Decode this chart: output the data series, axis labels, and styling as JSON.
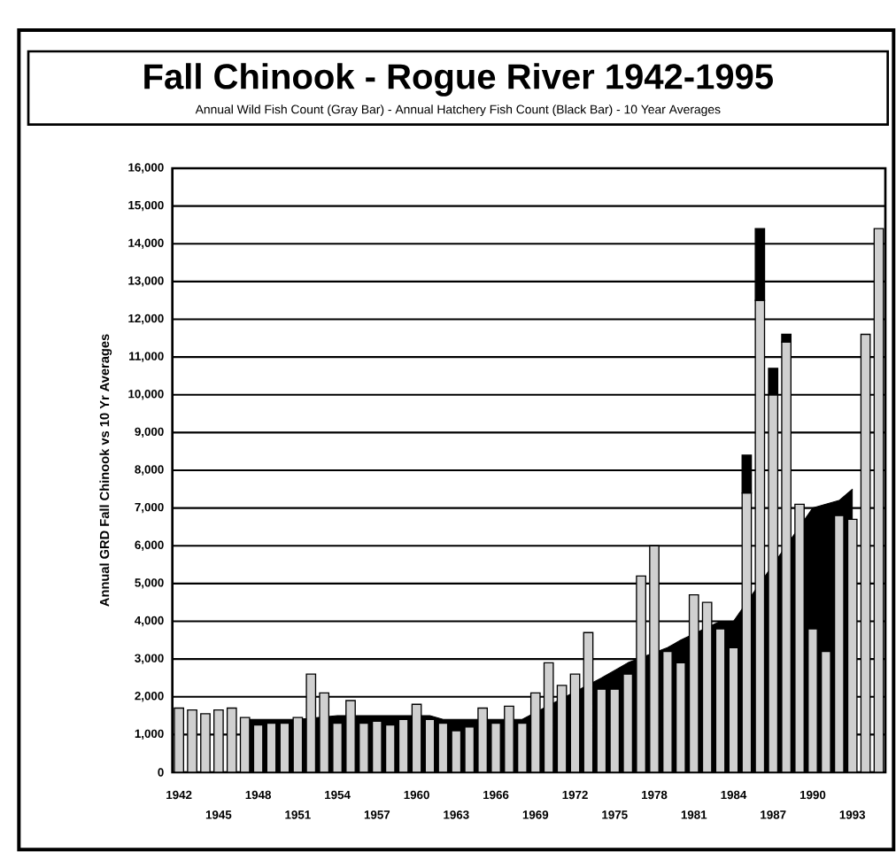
{
  "chart_data": {
    "type": "bar",
    "title": "Fall Chinook - Rogue River 1942-1995",
    "subtitle": "Annual Wild Fish Count (Gray Bar) - Annual Hatchery Fish Count (Black Bar) - 10 Year Averages",
    "ylabel": "Annual GRD Fall Chinook vs 10 Yr Averages",
    "categories": [
      "1942",
      null,
      null,
      "1945",
      null,
      null,
      "1948",
      null,
      null,
      "1951",
      null,
      null,
      "1954",
      null,
      null,
      "1957",
      null,
      null,
      "1960",
      null,
      null,
      "1963",
      null,
      null,
      "1966",
      null,
      null,
      "1969",
      null,
      null,
      "1972",
      null,
      null,
      "1975",
      null,
      null,
      "1978",
      null,
      null,
      "1981",
      null,
      null,
      "1984",
      null,
      null,
      "1987",
      null,
      null,
      "1990",
      null,
      null,
      "1993",
      null,
      null
    ],
    "grid": "y",
    "ylim": [
      0,
      16000
    ],
    "yticks": [
      0,
      {
        "value": 1000,
        "label": "1,000"
      },
      {
        "value": 2000,
        "label": "2,000"
      },
      {
        "value": 3000,
        "label": "3,000"
      },
      {
        "value": 4000,
        "label": "4,000"
      },
      {
        "value": 5000,
        "label": "5,000"
      },
      {
        "value": 6000,
        "label": "6,000"
      },
      {
        "value": 7000,
        "label": "7,000"
      },
      {
        "value": 8000,
        "label": "8,000"
      },
      {
        "value": 9000,
        "label": "9,000"
      },
      {
        "value": 10000,
        "label": "10,000"
      },
      {
        "value": 11000,
        "label": "11,000"
      },
      {
        "value": 12000,
        "label": "12,000"
      },
      {
        "value": 13000,
        "label": "13,000"
      },
      {
        "value": 14000,
        "label": "14,000"
      },
      {
        "value": 15000,
        "label": "15,000"
      },
      {
        "value": 16000,
        "label": "16,000"
      }
    ],
    "series": [
      {
        "type": "area",
        "color": "#000000",
        "values": [
          null,
          null,
          null,
          null,
          null,
          1400,
          1400,
          1400,
          1400,
          1400,
          null,
          null,
          1500,
          null,
          1500,
          1500,
          1500,
          1500,
          null,
          1500,
          1400,
          1400,
          1400,
          null,
          1400,
          null,
          1400,
          null,
          null,
          null,
          null,
          null,
          2500,
          2700,
          2900,
          null,
          null,
          3300,
          3500,
          null,
          null,
          4000,
          4000,
          null,
          null,
          null,
          null,
          null,
          7000,
          7100,
          7200,
          7500,
          null,
          null
        ]
      },
      {
        "color": "#d0d0d0",
        "values": [
          1700,
          1650,
          1550,
          1650,
          1700,
          1450,
          1250,
          1300,
          1300,
          1450,
          2600,
          2100,
          1300,
          1900,
          1300,
          1350,
          1250,
          1400,
          1800,
          1400,
          1300,
          1100,
          1200,
          1700,
          1300,
          1750,
          1300,
          2100,
          2900,
          2300,
          2600,
          3700,
          2200,
          2200,
          2600,
          5200,
          6000,
          3200,
          2900,
          4700,
          4500,
          3800,
          3300,
          7400,
          12500,
          10000,
          11400,
          7100,
          3800,
          3200,
          6800,
          6700,
          11600,
          14400
        ]
      },
      {
        "color": "#000000",
        "values": [
          null,
          null,
          null,
          null,
          null,
          null,
          null,
          null,
          null,
          null,
          null,
          null,
          null,
          null,
          null,
          null,
          null,
          null,
          null,
          null,
          null,
          null,
          null,
          null,
          null,
          null,
          null,
          null,
          null,
          null,
          null,
          null,
          null,
          null,
          null,
          null,
          null,
          null,
          null,
          null,
          null,
          null,
          null,
          1000,
          1900,
          700,
          200,
          null,
          null,
          null,
          null,
          null,
          null,
          null
        ],
        "base": [
          null,
          null,
          null,
          null,
          null,
          null,
          null,
          null,
          null,
          null,
          null,
          null,
          null,
          null,
          null,
          null,
          null,
          null,
          null,
          null,
          null,
          null,
          null,
          null,
          null,
          null,
          null,
          null,
          null,
          null,
          null,
          null,
          null,
          null,
          null,
          null,
          null,
          null,
          null,
          null,
          null,
          null,
          null,
          7400,
          12500,
          10000,
          11400,
          null,
          null,
          null,
          null,
          null,
          null,
          null
        ]
      }
    ]
  }
}
